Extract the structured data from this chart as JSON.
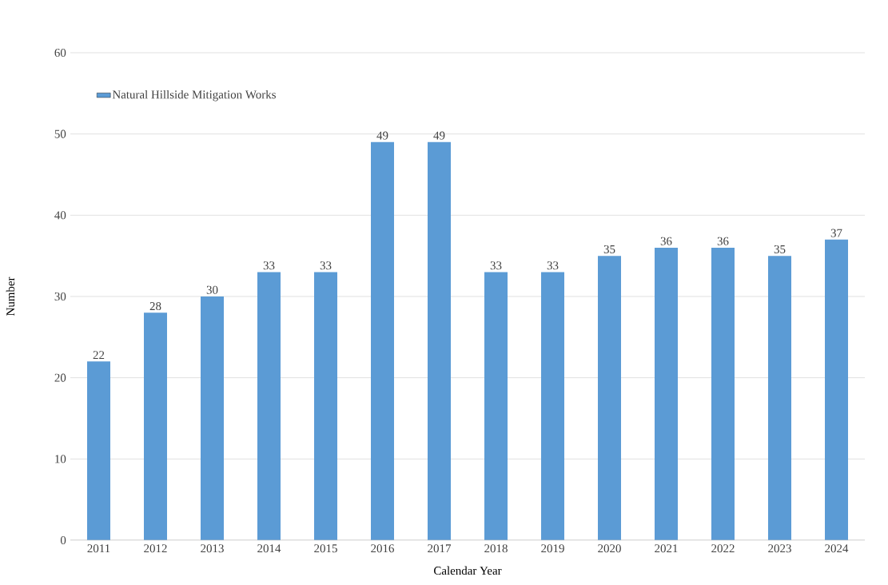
{
  "chart_data": {
    "type": "bar",
    "xlabel": "Calendar Year",
    "ylabel": "Number",
    "categories": [
      "2011",
      "2012",
      "2013",
      "2014",
      "2015",
      "2016",
      "2017",
      "2018",
      "2019",
      "2020",
      "2021",
      "2022",
      "2023",
      "2024"
    ],
    "series": [
      {
        "name": "Natural Hillside Mitigation Works",
        "color": "#5b9bd5",
        "values": [
          22,
          28,
          30,
          33,
          33,
          49,
          49,
          33,
          33,
          35,
          36,
          36,
          35,
          37
        ]
      }
    ],
    "ylim": [
      0,
      60
    ],
    "yticks": [
      0,
      10,
      20,
      30,
      40,
      50,
      60
    ],
    "grid": "y",
    "legend": "top left",
    "data_labels": true
  }
}
